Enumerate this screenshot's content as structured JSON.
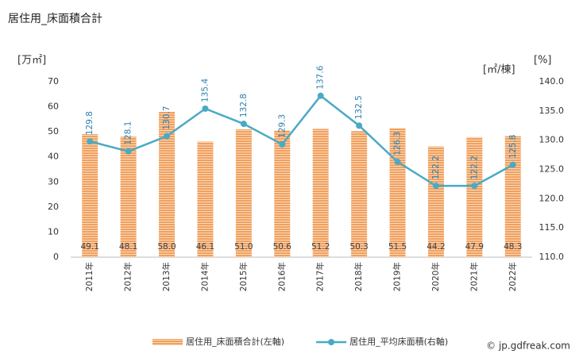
{
  "chart_data": {
    "type": "combo",
    "title": "居住用_床面積合計",
    "y_unit": "[万㎡]",
    "y2_unit": "[㎡/棟]",
    "y2_unit2": "[%]",
    "categories": [
      "2011年",
      "2012年",
      "2013年",
      "2014年",
      "2015年",
      "2016年",
      "2017年",
      "2018年",
      "2019年",
      "2020年",
      "2021年",
      "2022年"
    ],
    "series": [
      {
        "name": "居住用_床面積合計(左軸)",
        "type": "bar",
        "color": "#f0a060",
        "values": [
          49.1,
          48.1,
          58.0,
          46.1,
          51.0,
          50.6,
          51.2,
          50.3,
          51.5,
          44.2,
          47.9,
          48.3
        ],
        "value_labels": [
          "49.1",
          "48.1",
          "58.0",
          "46.1",
          "51.0",
          "50.6",
          "51.2",
          "50.3",
          "51.5",
          "44.2",
          "47.9",
          "48.3"
        ]
      },
      {
        "name": "居住用_平均床面積(右軸)",
        "type": "line",
        "axis": "y2",
        "color": "#4aaac4",
        "values": [
          129.8,
          128.1,
          130.7,
          135.4,
          132.8,
          129.3,
          137.6,
          132.5,
          126.3,
          122.2,
          122.2,
          125.8
        ]
      }
    ],
    "ylim": [
      0,
      70
    ],
    "yticks": [
      0,
      10,
      20,
      30,
      40,
      50,
      60,
      70
    ],
    "y2lim": [
      110,
      140
    ],
    "y2ticks": [
      {
        "value": 110,
        "label": "110.0"
      },
      {
        "value": 115,
        "label": "115.0"
      },
      {
        "value": 120,
        "label": "120.0"
      },
      {
        "value": 125,
        "label": "125.0"
      },
      {
        "value": 130,
        "label": "130.0"
      },
      {
        "value": 135,
        "label": "135.0"
      },
      {
        "value": 140,
        "label": "140.0"
      }
    ],
    "grid": false,
    "watermark": "© jp.gdfreak.com"
  }
}
